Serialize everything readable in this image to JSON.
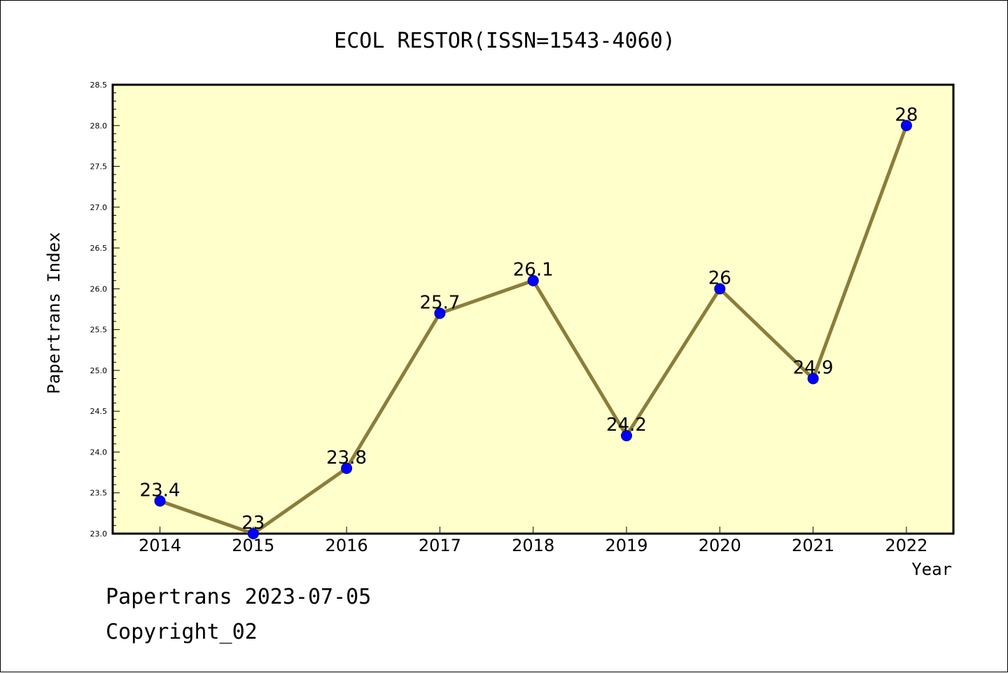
{
  "chart_data": {
    "type": "line",
    "title": "ECOL RESTOR(ISSN=1543-4060)",
    "xlabel": "Year",
    "ylabel": "Papertrans Index",
    "categories": [
      "2014",
      "2015",
      "2016",
      "2017",
      "2018",
      "2019",
      "2020",
      "2021",
      "2022"
    ],
    "series": [
      {
        "values": [
          23.4,
          23.0,
          23.8,
          25.7,
          26.1,
          24.2,
          26.0,
          24.9,
          28.0
        ],
        "labels": [
          "23.4",
          "23",
          "23.8",
          "25.7",
          "26.1",
          "24.2",
          "26",
          "24.9",
          "28"
        ]
      }
    ],
    "ylim": [
      23.0,
      28.5
    ],
    "yticks": [
      "23.0",
      "23.5",
      "24.0",
      "24.5",
      "25.0",
      "25.5",
      "26.0",
      "26.5",
      "27.0",
      "27.5",
      "28.0",
      "28.5"
    ],
    "grid": false,
    "legend": "none",
    "colors": {
      "plot_background": "#ffffcc",
      "line": "#8b7d3a",
      "marker_fill": "#0000ff",
      "marker_stroke": "#000080"
    }
  },
  "footer": {
    "line1": "Papertrans 2023-07-05",
    "line2": "Copyright_02"
  }
}
